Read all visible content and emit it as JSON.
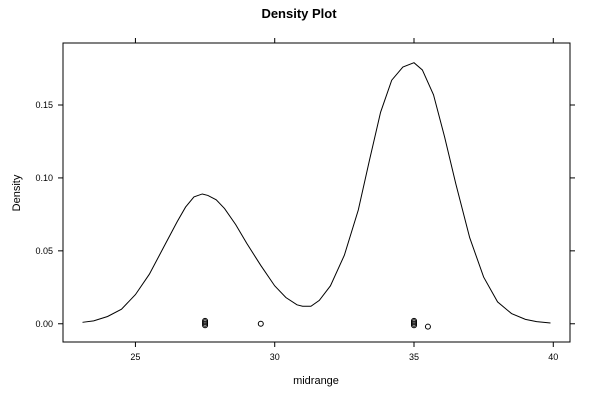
{
  "chart_data": {
    "type": "line",
    "title": "Density Plot",
    "xlabel": "midrange",
    "ylabel": "Density",
    "xlim": [
      22.4,
      40.6
    ],
    "ylim": [
      -0.0125,
      0.1925
    ],
    "x_ticks": [
      25,
      30,
      35,
      40
    ],
    "x_tick_labels": [
      "25",
      "30",
      "35",
      "40"
    ],
    "y_ticks": [
      0.0,
      0.05,
      0.1,
      0.15
    ],
    "y_tick_labels": [
      "0.00",
      "0.05",
      "0.10",
      "0.15"
    ],
    "grid": false,
    "legend": "none",
    "series": [
      {
        "x": [
          23.1,
          23.5,
          24.0,
          24.5,
          25.0,
          25.5,
          26.0,
          26.5,
          26.8,
          27.1,
          27.4,
          27.6,
          27.9,
          28.2,
          28.6,
          29.0,
          29.5,
          30.0,
          30.4,
          30.8,
          31.0,
          31.3,
          31.6,
          32.0,
          32.5,
          33.0,
          33.4,
          33.8,
          34.2,
          34.6,
          35.0,
          35.3,
          35.7,
          36.1,
          36.5,
          37.0,
          37.5,
          38.0,
          38.5,
          39.0,
          39.4,
          39.9
        ],
        "y": [
          0.001,
          0.002,
          0.005,
          0.01,
          0.02,
          0.034,
          0.052,
          0.07,
          0.08,
          0.087,
          0.089,
          0.088,
          0.085,
          0.079,
          0.068,
          0.055,
          0.04,
          0.026,
          0.018,
          0.013,
          0.012,
          0.012,
          0.016,
          0.026,
          0.047,
          0.078,
          0.112,
          0.145,
          0.167,
          0.176,
          0.179,
          0.174,
          0.157,
          0.128,
          0.096,
          0.059,
          0.032,
          0.015,
          0.007,
          0.003,
          0.0015,
          0.0005
        ]
      }
    ],
    "rug_points": [
      {
        "x": 27.5,
        "y": -0.001
      },
      {
        "x": 27.5,
        "y": 0.0
      },
      {
        "x": 27.5,
        "y": 0.001
      },
      {
        "x": 27.5,
        "y": 0.002
      },
      {
        "x": 29.5,
        "y": 0.0
      },
      {
        "x": 35.0,
        "y": -0.001
      },
      {
        "x": 35.0,
        "y": 0.0
      },
      {
        "x": 35.0,
        "y": 0.001
      },
      {
        "x": 35.0,
        "y": 0.002
      },
      {
        "x": 35.5,
        "y": -0.002
      }
    ]
  }
}
